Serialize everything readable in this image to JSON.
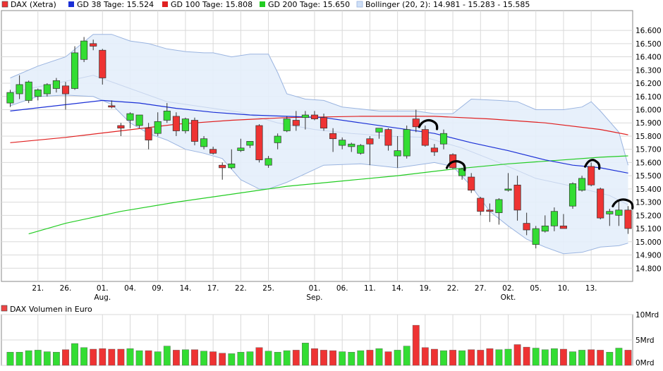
{
  "legend": {
    "dax": "DAX (Xetra)",
    "gd38": "GD 38 Tage: 15.524",
    "gd100": "GD 100 Tage: 15.808",
    "gd200": "GD 200 Tage: 15.650",
    "bollinger": "Bollinger (20, 2): 14.981 - 15.283 - 15.585"
  },
  "volume_title": "DAX Volumen in Euro",
  "colors": {
    "up": "#33dd33",
    "down": "#ee3333",
    "gd38": "#1a2fd6",
    "gd100": "#e02020",
    "gd200": "#22cc22",
    "bollinger_fill": "#e4eefb",
    "bollinger_line": "#9ab4e0",
    "grid": "#d9d9d9",
    "annotation": "#000000"
  },
  "chart_data": {
    "type": "candlestick",
    "ylim": [
      14.7,
      16.75
    ],
    "yticks": [
      "16.600",
      "16.500",
      "16.400",
      "16.300",
      "16.200",
      "16.100",
      "16.000",
      "15.900",
      "15.800",
      "15.700",
      "15.600",
      "15.500",
      "15.400",
      "15.300",
      "15.200",
      "15.100",
      "15.000",
      "14.900",
      "14.800"
    ],
    "ytick_values": [
      16.6,
      16.5,
      16.4,
      16.3,
      16.2,
      16.1,
      16.0,
      15.9,
      15.8,
      15.7,
      15.6,
      15.5,
      15.4,
      15.3,
      15.2,
      15.1,
      15.0,
      14.9,
      14.8
    ],
    "xticks": [
      {
        "i": 3,
        "label": "21."
      },
      {
        "i": 6,
        "label": "26."
      },
      {
        "i": 10,
        "label": "01.",
        "month": "Aug."
      },
      {
        "i": 13,
        "label": "04."
      },
      {
        "i": 16,
        "label": "09."
      },
      {
        "i": 19,
        "label": "14."
      },
      {
        "i": 22,
        "label": "17."
      },
      {
        "i": 25,
        "label": "22."
      },
      {
        "i": 28,
        "label": "25."
      },
      {
        "i": 33,
        "label": "01.",
        "month": "Sep."
      },
      {
        "i": 36,
        "label": "06."
      },
      {
        "i": 39,
        "label": "11."
      },
      {
        "i": 42,
        "label": "14."
      },
      {
        "i": 45,
        "label": "19."
      },
      {
        "i": 48,
        "label": "22."
      },
      {
        "i": 51,
        "label": "27."
      },
      {
        "i": 54,
        "label": "02.",
        "month": "Okt."
      },
      {
        "i": 57,
        "label": "05."
      },
      {
        "i": 60,
        "label": "10."
      },
      {
        "i": 63,
        "label": "13."
      }
    ],
    "candles": [
      {
        "o": 16.05,
        "h": 16.15,
        "l": 16.02,
        "c": 16.13
      },
      {
        "o": 16.12,
        "h": 16.26,
        "l": 16.08,
        "c": 16.19
      },
      {
        "o": 16.07,
        "h": 16.22,
        "l": 16.05,
        "c": 16.21
      },
      {
        "o": 16.1,
        "h": 16.16,
        "l": 16.07,
        "c": 16.15
      },
      {
        "o": 16.12,
        "h": 16.2,
        "l": 16.1,
        "c": 16.19
      },
      {
        "o": 16.16,
        "h": 16.24,
        "l": 16.13,
        "c": 16.22
      },
      {
        "o": 16.18,
        "h": 16.21,
        "l": 16.0,
        "c": 16.12
      },
      {
        "o": 16.16,
        "h": 16.48,
        "l": 16.15,
        "c": 16.43
      },
      {
        "o": 16.38,
        "h": 16.55,
        "l": 16.36,
        "c": 16.52
      },
      {
        "o": 16.5,
        "h": 16.53,
        "l": 16.45,
        "c": 16.48
      },
      {
        "o": 16.45,
        "h": 16.46,
        "l": 16.19,
        "c": 16.24
      },
      {
        "o": 16.03,
        "h": 16.07,
        "l": 16.01,
        "c": 16.02
      },
      {
        "o": 15.88,
        "h": 15.9,
        "l": 15.8,
        "c": 15.86
      },
      {
        "o": 15.92,
        "h": 15.98,
        "l": 15.86,
        "c": 15.97
      },
      {
        "o": 15.88,
        "h": 15.96,
        "l": 15.86,
        "c": 15.96
      },
      {
        "o": 15.86,
        "h": 15.9,
        "l": 15.7,
        "c": 15.77
      },
      {
        "o": 15.82,
        "h": 15.98,
        "l": 15.8,
        "c": 15.91
      },
      {
        "o": 15.92,
        "h": 16.05,
        "l": 15.9,
        "c": 15.99
      },
      {
        "o": 15.95,
        "h": 15.98,
        "l": 15.8,
        "c": 15.84
      },
      {
        "o": 15.84,
        "h": 15.94,
        "l": 15.82,
        "c": 15.93
      },
      {
        "o": 15.92,
        "h": 15.94,
        "l": 15.73,
        "c": 15.76
      },
      {
        "o": 15.72,
        "h": 15.8,
        "l": 15.7,
        "c": 15.78
      },
      {
        "o": 15.7,
        "h": 15.72,
        "l": 15.66,
        "c": 15.67
      },
      {
        "o": 15.58,
        "h": 15.6,
        "l": 15.47,
        "c": 15.56
      },
      {
        "o": 15.56,
        "h": 15.7,
        "l": 15.55,
        "c": 15.59
      },
      {
        "o": 15.69,
        "h": 15.78,
        "l": 15.68,
        "c": 15.71
      },
      {
        "o": 15.73,
        "h": 15.76,
        "l": 15.71,
        "c": 15.76
      },
      {
        "o": 15.88,
        "h": 15.89,
        "l": 15.6,
        "c": 15.62
      },
      {
        "o": 15.58,
        "h": 15.65,
        "l": 15.56,
        "c": 15.63
      },
      {
        "o": 15.75,
        "h": 15.82,
        "l": 15.7,
        "c": 15.8
      },
      {
        "o": 15.84,
        "h": 15.95,
        "l": 15.83,
        "c": 15.93
      },
      {
        "o": 15.92,
        "h": 15.99,
        "l": 15.84,
        "c": 15.88
      },
      {
        "o": 15.94,
        "h": 15.99,
        "l": 15.85,
        "c": 15.96
      },
      {
        "o": 15.96,
        "h": 15.99,
        "l": 15.92,
        "c": 15.93
      },
      {
        "o": 15.94,
        "h": 15.97,
        "l": 15.84,
        "c": 15.86
      },
      {
        "o": 15.82,
        "h": 15.86,
        "l": 15.68,
        "c": 15.78
      },
      {
        "o": 15.73,
        "h": 15.79,
        "l": 15.7,
        "c": 15.77
      },
      {
        "o": 15.72,
        "h": 15.75,
        "l": 15.68,
        "c": 15.74
      },
      {
        "o": 15.67,
        "h": 15.74,
        "l": 15.66,
        "c": 15.73
      },
      {
        "o": 15.78,
        "h": 15.8,
        "l": 15.58,
        "c": 15.74
      },
      {
        "o": 15.83,
        "h": 15.86,
        "l": 15.78,
        "c": 15.86
      },
      {
        "o": 15.85,
        "h": 15.86,
        "l": 15.69,
        "c": 15.73
      },
      {
        "o": 15.65,
        "h": 15.8,
        "l": 15.56,
        "c": 15.69
      },
      {
        "o": 15.65,
        "h": 15.88,
        "l": 15.63,
        "c": 15.85
      },
      {
        "o": 15.93,
        "h": 16.0,
        "l": 15.83,
        "c": 15.87
      },
      {
        "o": 15.85,
        "h": 15.88,
        "l": 15.72,
        "c": 15.73
      },
      {
        "o": 15.71,
        "h": 15.74,
        "l": 15.65,
        "c": 15.68
      },
      {
        "o": 15.74,
        "h": 15.85,
        "l": 15.7,
        "c": 15.82
      },
      {
        "o": 15.66,
        "h": 15.67,
        "l": 15.55,
        "c": 15.56
      },
      {
        "o": 15.5,
        "h": 15.56,
        "l": 15.47,
        "c": 15.55
      },
      {
        "o": 15.49,
        "h": 15.52,
        "l": 15.37,
        "c": 15.39
      },
      {
        "o": 15.33,
        "h": 15.34,
        "l": 15.2,
        "c": 15.23
      },
      {
        "o": 15.24,
        "h": 15.29,
        "l": 15.15,
        "c": 15.23
      },
      {
        "o": 15.22,
        "h": 15.33,
        "l": 15.13,
        "c": 15.32
      },
      {
        "o": 15.39,
        "h": 15.52,
        "l": 15.38,
        "c": 15.4
      },
      {
        "o": 15.43,
        "h": 15.5,
        "l": 15.16,
        "c": 15.24
      },
      {
        "o": 15.14,
        "h": 15.22,
        "l": 15.05,
        "c": 15.09
      },
      {
        "o": 14.98,
        "h": 15.12,
        "l": 14.95,
        "c": 15.1
      },
      {
        "o": 15.08,
        "h": 15.2,
        "l": 15.07,
        "c": 15.12
      },
      {
        "o": 15.12,
        "h": 15.26,
        "l": 15.08,
        "c": 15.23
      },
      {
        "o": 15.12,
        "h": 15.21,
        "l": 15.1,
        "c": 15.1
      },
      {
        "o": 15.27,
        "h": 15.45,
        "l": 15.25,
        "c": 15.44
      },
      {
        "o": 15.39,
        "h": 15.5,
        "l": 15.38,
        "c": 15.48
      },
      {
        "o": 15.57,
        "h": 15.6,
        "l": 15.42,
        "c": 15.43
      },
      {
        "o": 15.4,
        "h": 15.41,
        "l": 15.17,
        "c": 15.18
      },
      {
        "o": 15.21,
        "h": 15.25,
        "l": 15.12,
        "c": 15.23
      },
      {
        "o": 15.2,
        "h": 15.31,
        "l": 15.12,
        "c": 15.24
      },
      {
        "o": 15.24,
        "h": 15.27,
        "l": 15.06,
        "c": 15.1
      }
    ],
    "gd38": [
      [
        0,
        15.99
      ],
      [
        5,
        16.03
      ],
      [
        10,
        16.07
      ],
      [
        14,
        16.05
      ],
      [
        18,
        16.01
      ],
      [
        22,
        15.98
      ],
      [
        26,
        15.96
      ],
      [
        30,
        15.95
      ],
      [
        34,
        15.94
      ],
      [
        38,
        15.9
      ],
      [
        42,
        15.86
      ],
      [
        46,
        15.82
      ],
      [
        50,
        15.75
      ],
      [
        54,
        15.69
      ],
      [
        58,
        15.62
      ],
      [
        61,
        15.58
      ],
      [
        64,
        15.56
      ],
      [
        67,
        15.52
      ]
    ],
    "gd100": [
      [
        0,
        15.75
      ],
      [
        6,
        15.79
      ],
      [
        12,
        15.84
      ],
      [
        18,
        15.89
      ],
      [
        24,
        15.92
      ],
      [
        30,
        15.94
      ],
      [
        38,
        15.95
      ],
      [
        46,
        15.95
      ],
      [
        52,
        15.93
      ],
      [
        58,
        15.9
      ],
      [
        64,
        15.85
      ],
      [
        67,
        15.81
      ]
    ],
    "gd200": [
      [
        2,
        15.06
      ],
      [
        6,
        15.14
      ],
      [
        12,
        15.23
      ],
      [
        18,
        15.3
      ],
      [
        24,
        15.36
      ],
      [
        30,
        15.42
      ],
      [
        36,
        15.46
      ],
      [
        42,
        15.5
      ],
      [
        48,
        15.55
      ],
      [
        54,
        15.59
      ],
      [
        60,
        15.62
      ],
      [
        64,
        15.64
      ],
      [
        67,
        15.65
      ]
    ],
    "boll_upper": [
      [
        0,
        16.24
      ],
      [
        3,
        16.33
      ],
      [
        6,
        16.4
      ],
      [
        9,
        16.57
      ],
      [
        11,
        16.57
      ],
      [
        13,
        16.52
      ],
      [
        15,
        16.5
      ],
      [
        17,
        16.46
      ],
      [
        19,
        16.44
      ],
      [
        21,
        16.43
      ],
      [
        22,
        16.43
      ],
      [
        24,
        16.4
      ],
      [
        26,
        16.42
      ],
      [
        28,
        16.42
      ],
      [
        29,
        16.28
      ],
      [
        30,
        16.12
      ],
      [
        32,
        16.08
      ],
      [
        34,
        16.07
      ],
      [
        36,
        16.02
      ],
      [
        40,
        15.99
      ],
      [
        44,
        15.99
      ],
      [
        46,
        15.97
      ],
      [
        48,
        15.97
      ],
      [
        50,
        16.08
      ],
      [
        53,
        16.07
      ],
      [
        55,
        16.06
      ],
      [
        57,
        16.0
      ],
      [
        60,
        16.0
      ],
      [
        62,
        16.02
      ],
      [
        63,
        16.06
      ],
      [
        64,
        15.99
      ],
      [
        66,
        15.83
      ],
      [
        67,
        15.58
      ]
    ],
    "boll_lower": [
      [
        0,
        16.03
      ],
      [
        3,
        16.1
      ],
      [
        6,
        16.11
      ],
      [
        9,
        16.1
      ],
      [
        11,
        16.04
      ],
      [
        13,
        15.9
      ],
      [
        15,
        15.82
      ],
      [
        17,
        15.77
      ],
      [
        19,
        15.7
      ],
      [
        21,
        15.67
      ],
      [
        23,
        15.63
      ],
      [
        25,
        15.47
      ],
      [
        27,
        15.4
      ],
      [
        28,
        15.4
      ],
      [
        30,
        15.45
      ],
      [
        34,
        15.58
      ],
      [
        38,
        15.59
      ],
      [
        42,
        15.56
      ],
      [
        46,
        15.6
      ],
      [
        48,
        15.57
      ],
      [
        50,
        15.42
      ],
      [
        52,
        15.23
      ],
      [
        54,
        15.12
      ],
      [
        56,
        15.02
      ],
      [
        58,
        14.96
      ],
      [
        60,
        14.91
      ],
      [
        62,
        14.92
      ],
      [
        64,
        14.96
      ],
      [
        66,
        14.97
      ],
      [
        67,
        14.99
      ]
    ],
    "boll_mid": [
      [
        0,
        16.13
      ],
      [
        5,
        16.2
      ],
      [
        9,
        16.26
      ],
      [
        13,
        16.16
      ],
      [
        17,
        16.06
      ],
      [
        21,
        16.02
      ],
      [
        25,
        15.98
      ],
      [
        29,
        15.9
      ],
      [
        33,
        15.85
      ],
      [
        37,
        15.82
      ],
      [
        41,
        15.8
      ],
      [
        45,
        15.79
      ],
      [
        49,
        15.71
      ],
      [
        53,
        15.6
      ],
      [
        57,
        15.48
      ],
      [
        61,
        15.42
      ],
      [
        65,
        15.35
      ],
      [
        67,
        15.28
      ]
    ],
    "annotation_arcs": [
      {
        "x0": 44.5,
        "x1": 46.2,
        "y": 15.88
      },
      {
        "x0": 47.5,
        "x1": 49.2,
        "y": 15.57
      },
      {
        "x0": 62.5,
        "x1": 63.8,
        "y": 15.58
      },
      {
        "x0": 65.5,
        "x1": 67.4,
        "y": 15.28
      }
    ],
    "volume": {
      "ylim": [
        0,
        10
      ],
      "yticks": [
        "10Mrd",
        "5Mrd",
        "0Mrd"
      ],
      "ytick_values": [
        10,
        5,
        0
      ],
      "values": [
        2.6,
        2.6,
        2.9,
        3.0,
        2.7,
        2.6,
        3.1,
        4.3,
        3.5,
        3.2,
        3.3,
        3.2,
        3.2,
        3.3,
        2.9,
        2.9,
        2.7,
        3.8,
        3.0,
        3.1,
        3.1,
        2.8,
        2.7,
        2.4,
        2.3,
        2.6,
        2.7,
        3.5,
        2.8,
        2.6,
        2.9,
        3.0,
        4.4,
        3.3,
        3.0,
        2.9,
        2.7,
        2.6,
        2.9,
        3.0,
        3.3,
        2.7,
        3.0,
        3.8,
        7.9,
        3.5,
        3.2,
        2.9,
        3.0,
        2.9,
        3.1,
        3.0,
        3.3,
        3.1,
        3.2,
        4.1,
        3.6,
        3.4,
        3.1,
        3.3,
        3.2,
        2.7,
        3.0,
        3.1,
        3.0,
        2.6,
        3.4,
        3.0
      ]
    }
  }
}
